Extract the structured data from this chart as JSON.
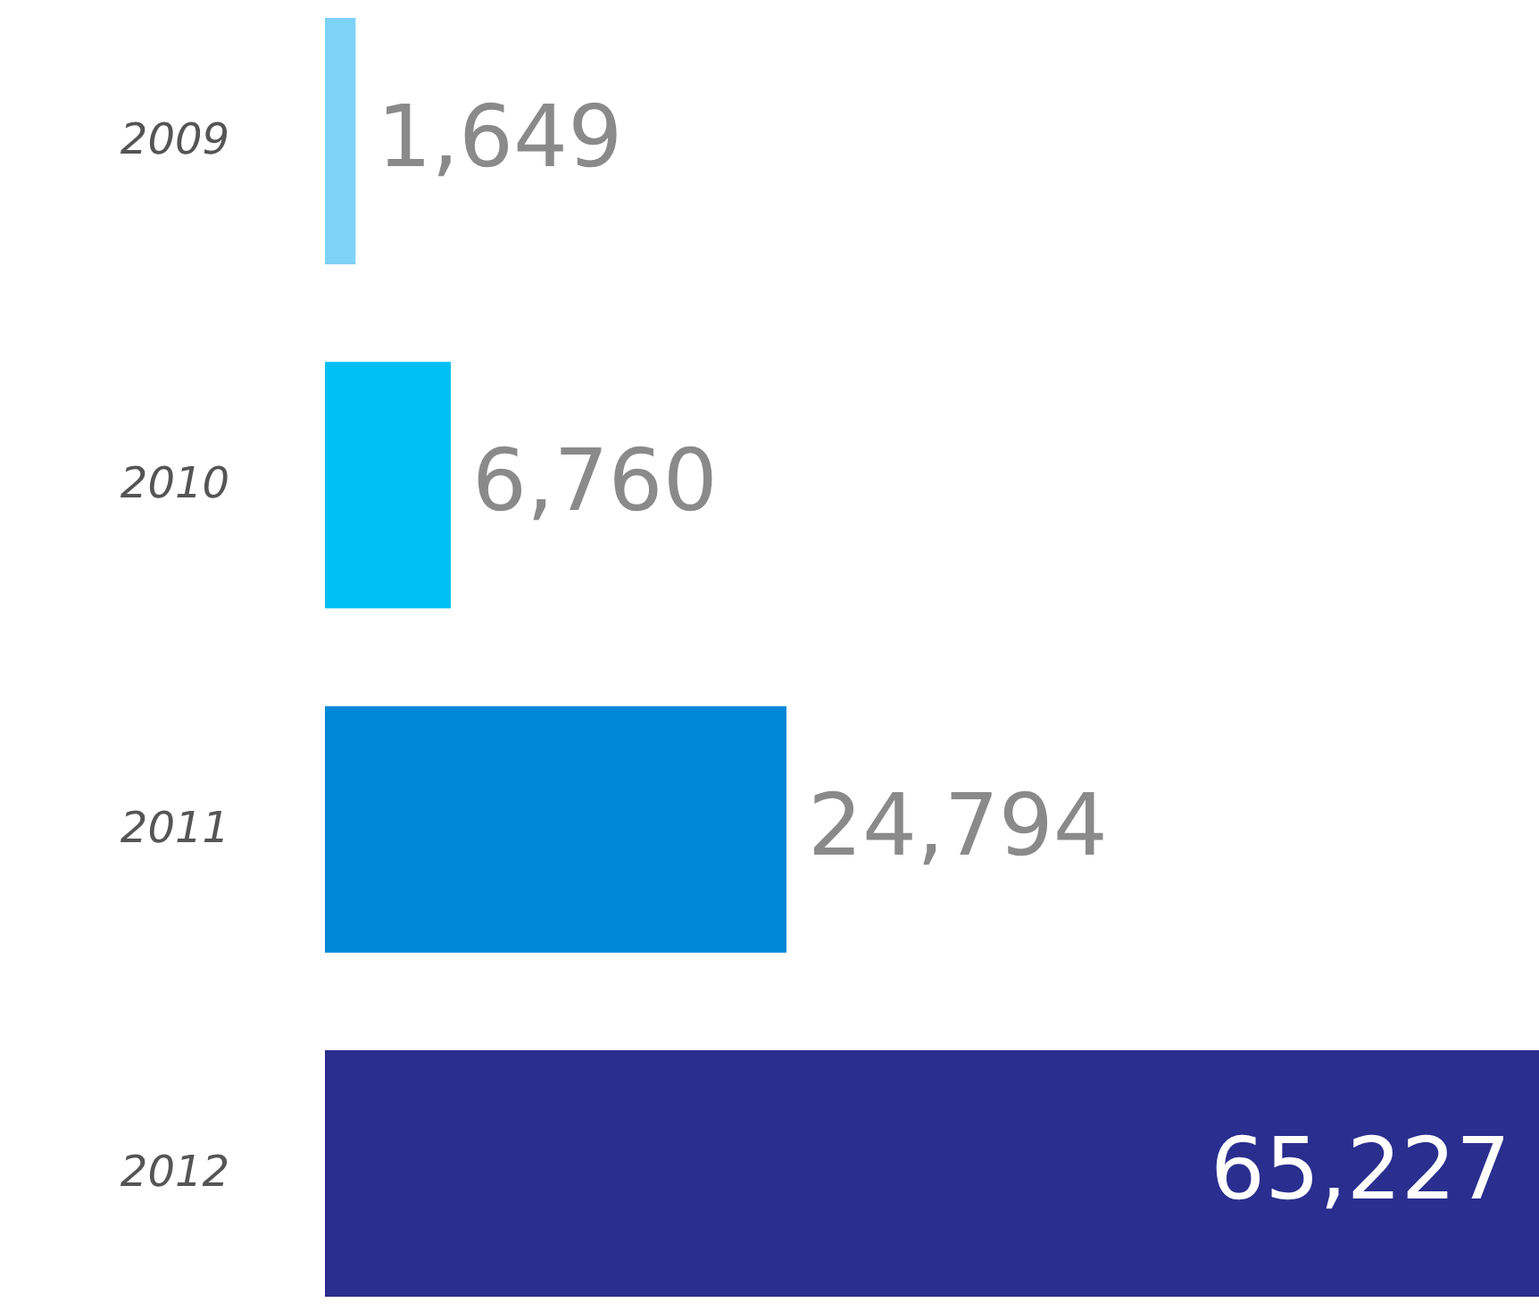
{
  "chart_data": {
    "type": "bar",
    "orientation": "horizontal",
    "categories": [
      "2009",
      "2010",
      "2011",
      "2012"
    ],
    "values": [
      1649,
      6760,
      24794,
      65227
    ],
    "value_labels": [
      "1,649",
      "6,760",
      "24,794",
      "65,227"
    ],
    "colors": [
      "#7dd3f7",
      "#00c0f3",
      "#0088d8",
      "#2a2e8e"
    ],
    "tick_labels": "y"
  }
}
